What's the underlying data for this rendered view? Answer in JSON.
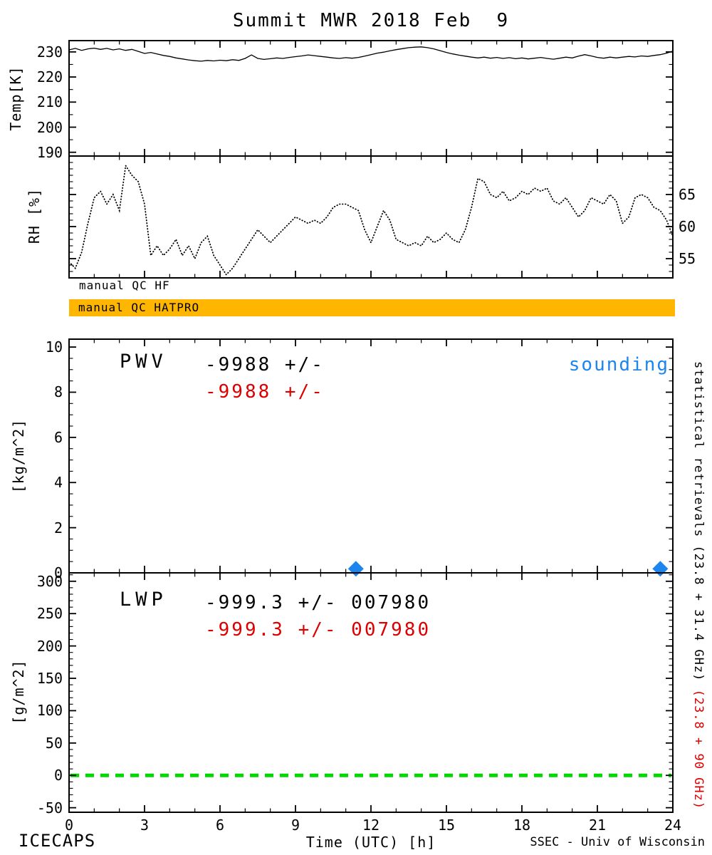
{
  "title": "Summit MWR 2018 Feb  9",
  "colors": {
    "red": "#DE0000",
    "blue": "#1C86EE",
    "green": "#00D800",
    "qc_bar": "#FFB600"
  },
  "qc": {
    "hf_label": "manual QC HF",
    "hatpro_label": "manual QC HATPRO"
  },
  "pwv": {
    "label": "PWV",
    "value_black": "-9988 +/-",
    "value_red": "-9988 +/-",
    "sounding_label": "sounding"
  },
  "lwp": {
    "label": "LWP",
    "value_black": "-999.3 +/- 007980",
    "value_red": "-999.3 +/- 007980"
  },
  "right_labels": {
    "black": "statistical retrievals (23.8 + 31.4 GHz) ",
    "red": "(23.8 + 90 GHz)"
  },
  "footer": {
    "left": "ICECAPS",
    "right": "SSEC - Univ of Wisconsin"
  },
  "chart_data": {
    "type": "line",
    "title": "Summit MWR 2018 Feb  9",
    "x_label": "Time (UTC) [h]",
    "x_range": [
      0,
      24
    ],
    "x_ticks": [
      0,
      3,
      6,
      9,
      12,
      15,
      18,
      21,
      24
    ],
    "panels": [
      {
        "name": "temperature",
        "ylabel": "Temp[K]",
        "yticks": [
          230,
          220,
          210,
          200,
          190
        ],
        "ylim": [
          188.5,
          234.5
        ],
        "series": [
          {
            "name": "brightness-temperature",
            "style": "solid",
            "x_start": 0,
            "x_step": 0.25,
            "values": [
              230.8,
              231.4,
              230.6,
              231.2,
              231.5,
              231.0,
              231.4,
              230.8,
              231.2,
              230.6,
              231.0,
              230.2,
              229.4,
              229.8,
              229.2,
              228.6,
              228.2,
              227.6,
              227.2,
              226.8,
              226.5,
              226.3,
              226.6,
              226.4,
              226.7,
              226.5,
              226.9,
              226.6,
              227.4,
              228.8,
              227.4,
              227.0,
              227.3,
              227.6,
              227.4,
              227.8,
              228.1,
              228.4,
              228.8,
              228.5,
              228.2,
              227.9,
              227.6,
              227.4,
              227.7,
              227.5,
              227.8,
              228.3,
              228.9,
              229.5,
              229.9,
              230.4,
              230.9,
              231.3,
              231.7,
              231.9,
              232.0,
              231.7,
              231.2,
              230.5,
              229.8,
              229.2,
              228.7,
              228.3,
              227.9,
              227.6,
              227.9,
              227.5,
              227.8,
              227.4,
              227.7,
              227.3,
              227.6,
              227.2,
              227.5,
              227.8,
              227.4,
              227.1,
              227.5,
              227.9,
              227.6,
              228.3,
              228.9,
              228.4,
              227.8,
              227.5,
              227.9,
              227.6,
              227.9,
              228.2,
              228.0,
              228.4,
              228.2,
              228.6,
              228.9,
              229.5,
              230.3
            ]
          }
        ]
      },
      {
        "name": "rh",
        "ylabel": "RH [%]",
        "yticks": [
          65,
          60,
          55
        ],
        "labels_side": "right",
        "ylim": [
          52,
          71
        ],
        "series": [
          {
            "name": "relative-humidity",
            "style": "dotted",
            "x_start": 0,
            "x_step": 0.25,
            "values": [
              54.5,
              53.5,
              56.0,
              60.5,
              64.5,
              65.5,
              63.5,
              65.0,
              62.5,
              69.5,
              68.0,
              67.0,
              63.5,
              55.5,
              57.0,
              55.5,
              56.5,
              58.0,
              55.5,
              57.0,
              55.0,
              57.5,
              58.5,
              55.5,
              54.0,
              52.5,
              53.5,
              55.0,
              56.5,
              58.0,
              59.5,
              58.5,
              57.5,
              58.5,
              59.5,
              60.5,
              61.5,
              61.0,
              60.5,
              61.0,
              60.5,
              61.5,
              63.0,
              63.5,
              63.5,
              63.0,
              62.5,
              59.5,
              57.5,
              60.0,
              62.5,
              61.0,
              58.0,
              57.5,
              57.0,
              57.5,
              57.0,
              58.5,
              57.5,
              58.0,
              59.0,
              58.0,
              57.5,
              59.5,
              63.0,
              67.5,
              67.0,
              65.0,
              64.5,
              65.5,
              64.0,
              64.5,
              65.5,
              65.0,
              66.0,
              65.5,
              66.0,
              64.0,
              63.5,
              64.5,
              63.0,
              61.5,
              62.5,
              64.5,
              64.0,
              63.5,
              65.0,
              64.0,
              60.5,
              61.5,
              64.5,
              65.0,
              64.5,
              63.0,
              62.5,
              61.0,
              58.5
            ]
          }
        ]
      },
      {
        "name": "pwv",
        "ylabel": "[kg/m^2]",
        "yticks": [
          10,
          8,
          6,
          4,
          2,
          0
        ],
        "ylim": [
          0,
          10.35
        ],
        "series": [
          {
            "name": "sounding",
            "type": "scatter",
            "marker": "diamond",
            "color": "#1C86EE",
            "x": [
              11.4,
              23.5
            ],
            "y": [
              0.18,
              0.18
            ]
          }
        ]
      },
      {
        "name": "lwp",
        "ylabel": "[g/m^2]",
        "yticks": [
          300,
          250,
          200,
          150,
          100,
          50,
          0,
          -50
        ],
        "ylim": [
          -57,
          313
        ],
        "series": [
          {
            "name": "zero-line",
            "type": "hline",
            "y": 0,
            "color": "#00D800",
            "dash": "dashed"
          }
        ]
      }
    ]
  }
}
